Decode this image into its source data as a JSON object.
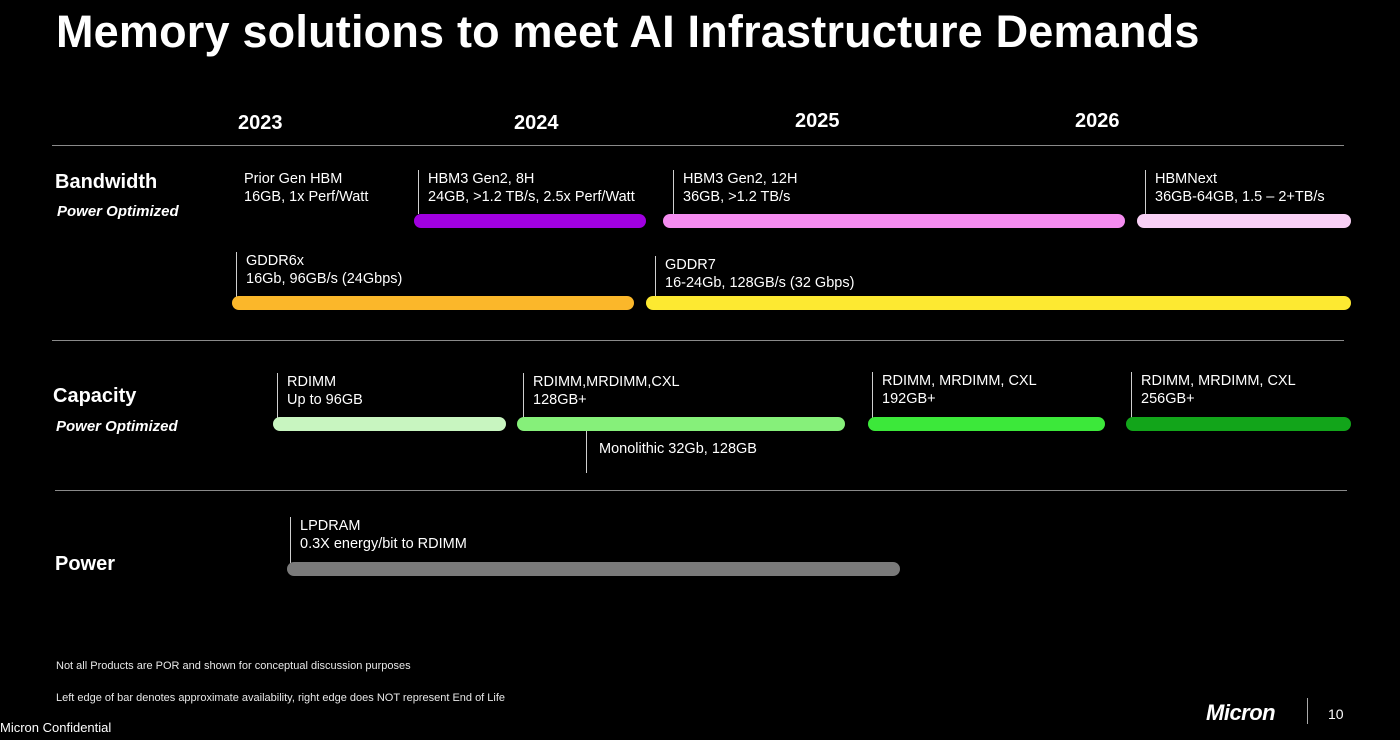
{
  "title": "Memory solutions to meet AI Infrastructure Demands",
  "years": [
    "2023",
    "2024",
    "2025",
    "2026"
  ],
  "rows": {
    "bandwidth": {
      "label": "Bandwidth",
      "sublabel": "Power Optimized"
    },
    "capacity": {
      "label": "Capacity",
      "sublabel": "Power Optimized"
    },
    "power": {
      "label": "Power"
    }
  },
  "items": {
    "prior_gen_hbm": {
      "line1": "Prior Gen HBM",
      "line2": "16GB, 1x Perf/Watt"
    },
    "hbm3_gen2_8h": {
      "line1": "HBM3 Gen2, 8H",
      "line2": "24GB, >1.2 TB/s, 2.5x Perf/Watt",
      "color": "#a000e0"
    },
    "hbm3_gen2_12h": {
      "line1": "HBM3 Gen2, 12H",
      "line2": "36GB, >1.2 TB/s",
      "color": "#f58cf0"
    },
    "hbmnext": {
      "line1": "HBMNext",
      "line2": "36GB-64GB, 1.5 – 2+TB/s",
      "color": "#f8d0f5"
    },
    "gddr6x": {
      "line1": "GDDR6x",
      "line2": "16Gb, 96GB/s (24Gbps)",
      "color": "#fbb72a"
    },
    "gddr7": {
      "line1": "GDDR7",
      "line2": "16-24Gb, 128GB/s (32 Gbps)",
      "color": "#fde931"
    },
    "rdimm_96": {
      "line1": "RDIMM",
      "line2": "Up to 96GB",
      "color": "#c8f5c0"
    },
    "rdimm_128": {
      "line1": "RDIMM,MRDIMM,CXL",
      "line2": "128GB+",
      "color": "#86f07a"
    },
    "monolithic": {
      "line1": "Monolithic 32Gb, 128GB"
    },
    "rdimm_192": {
      "line1": "RDIMM, MRDIMM, CXL",
      "line2": "192GB+",
      "color": "#3ce83a"
    },
    "rdimm_256": {
      "line1": "RDIMM, MRDIMM, CXL",
      "line2": "256GB+",
      "color": "#12a51a"
    },
    "lpdram": {
      "line1": "LPDRAM",
      "line2": "0.3X energy/bit to RDIMM",
      "color": "#7a7a7a"
    }
  },
  "footnotes": [
    "Not all Products are POR and shown for conceptual discussion purposes",
    "Left edge of bar denotes approximate availability, right edge does NOT represent End of Life"
  ],
  "confidential": "Micron Confidential",
  "logo_text": "Micron",
  "page_number": "10"
}
